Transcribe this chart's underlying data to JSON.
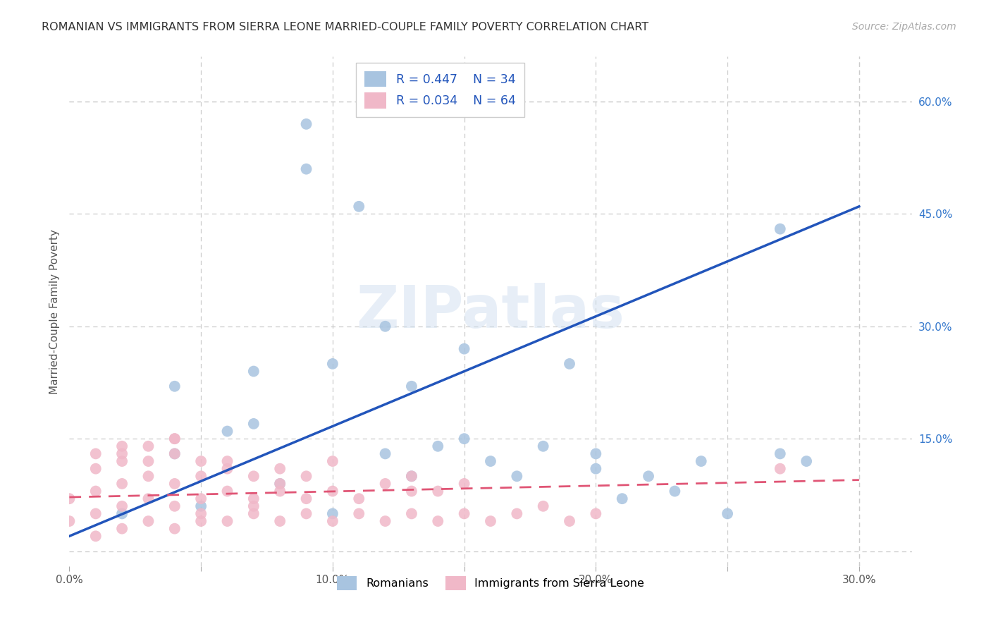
{
  "title": "ROMANIAN VS IMMIGRANTS FROM SIERRA LEONE MARRIED-COUPLE FAMILY POVERTY CORRELATION CHART",
  "source": "Source: ZipAtlas.com",
  "ylabel": "Married-Couple Family Poverty",
  "xlim": [
    0.0,
    0.32
  ],
  "ylim": [
    -0.02,
    0.66
  ],
  "xticks": [
    0.0,
    0.05,
    0.1,
    0.15,
    0.2,
    0.25,
    0.3
  ],
  "xtick_labels": [
    "0.0%",
    "",
    "10.0%",
    "",
    "20.0%",
    "",
    "30.0%"
  ],
  "yticks_right": [
    0.0,
    0.15,
    0.3,
    0.45,
    0.6
  ],
  "ytick_labels_right": [
    "",
    "15.0%",
    "30.0%",
    "45.0%",
    "60.0%"
  ],
  "legend_r1": "R = 0.447",
  "legend_n1": "N = 34",
  "legend_r2": "R = 0.034",
  "legend_n2": "N = 64",
  "watermark": "ZIPatlas",
  "romanian_color": "#a8c4e0",
  "sierra_leone_color": "#f0b8c8",
  "romanian_line_color": "#2255bb",
  "sierra_leone_line_color": "#e05575",
  "grid_color": "#cccccc",
  "background_color": "#ffffff",
  "romanians_x": [
    0.02,
    0.04,
    0.04,
    0.05,
    0.06,
    0.07,
    0.07,
    0.08,
    0.09,
    0.09,
    0.1,
    0.1,
    0.11,
    0.12,
    0.12,
    0.13,
    0.13,
    0.14,
    0.15,
    0.15,
    0.16,
    0.17,
    0.18,
    0.19,
    0.2,
    0.2,
    0.21,
    0.22,
    0.23,
    0.24,
    0.25,
    0.27,
    0.27,
    0.28
  ],
  "romanians_y": [
    0.05,
    0.13,
    0.22,
    0.06,
    0.16,
    0.24,
    0.17,
    0.09,
    0.57,
    0.51,
    0.05,
    0.25,
    0.46,
    0.13,
    0.3,
    0.1,
    0.22,
    0.14,
    0.27,
    0.15,
    0.12,
    0.1,
    0.14,
    0.25,
    0.11,
    0.13,
    0.07,
    0.1,
    0.08,
    0.12,
    0.05,
    0.43,
    0.13,
    0.12
  ],
  "sierra_leone_x": [
    0.0,
    0.0,
    0.01,
    0.01,
    0.01,
    0.01,
    0.01,
    0.02,
    0.02,
    0.02,
    0.02,
    0.02,
    0.02,
    0.03,
    0.03,
    0.03,
    0.03,
    0.03,
    0.04,
    0.04,
    0.04,
    0.04,
    0.04,
    0.04,
    0.05,
    0.05,
    0.05,
    0.05,
    0.05,
    0.06,
    0.06,
    0.06,
    0.06,
    0.07,
    0.07,
    0.07,
    0.07,
    0.08,
    0.08,
    0.08,
    0.08,
    0.09,
    0.09,
    0.09,
    0.1,
    0.1,
    0.1,
    0.11,
    0.11,
    0.12,
    0.12,
    0.13,
    0.13,
    0.13,
    0.14,
    0.14,
    0.15,
    0.15,
    0.16,
    0.17,
    0.18,
    0.19,
    0.2,
    0.27
  ],
  "sierra_leone_y": [
    0.04,
    0.07,
    0.02,
    0.05,
    0.08,
    0.11,
    0.13,
    0.03,
    0.06,
    0.09,
    0.12,
    0.14,
    0.13,
    0.04,
    0.07,
    0.1,
    0.12,
    0.14,
    0.03,
    0.06,
    0.09,
    0.13,
    0.15,
    0.15,
    0.04,
    0.07,
    0.1,
    0.12,
    0.05,
    0.04,
    0.08,
    0.11,
    0.12,
    0.05,
    0.07,
    0.1,
    0.06,
    0.04,
    0.08,
    0.11,
    0.09,
    0.05,
    0.07,
    0.1,
    0.04,
    0.08,
    0.12,
    0.05,
    0.07,
    0.04,
    0.09,
    0.05,
    0.08,
    0.1,
    0.04,
    0.08,
    0.05,
    0.09,
    0.04,
    0.05,
    0.06,
    0.04,
    0.05,
    0.11
  ],
  "romanian_trendline": [
    [
      0.0,
      0.3
    ],
    [
      0.02,
      0.46
    ]
  ],
  "sierra_leone_trendline": [
    [
      0.0,
      0.3
    ],
    [
      0.072,
      0.095
    ]
  ]
}
